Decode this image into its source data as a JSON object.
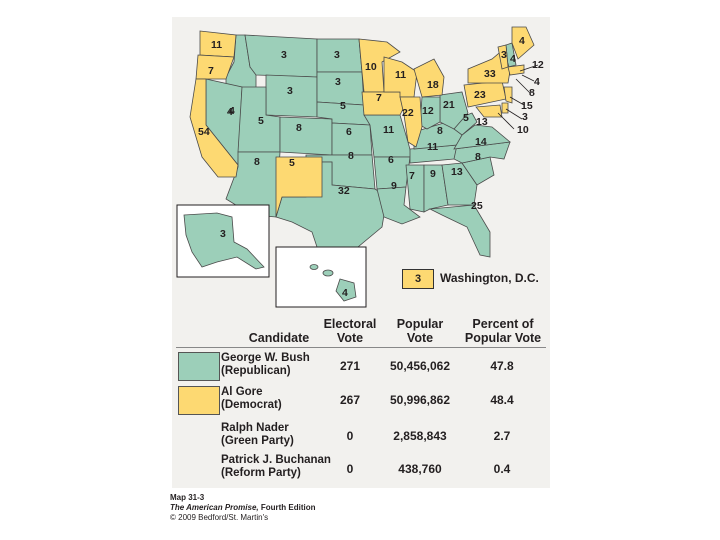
{
  "colors": {
    "republican": "#9ccfb9",
    "democrat": "#fdd972",
    "border": "#4a4a4a"
  },
  "map": {
    "state_votes": {
      "wa": "11",
      "or": "7",
      "ca": "54",
      "id": "4",
      "nv": "4",
      "mt": "3",
      "wy": "3",
      "ut": "5",
      "az": "8",
      "co": "8",
      "nm": "5",
      "nd": "3",
      "sd": "3",
      "ne": "5",
      "ks": "6",
      "ok": "8",
      "tx": "32",
      "mn": "10",
      "ia": "7",
      "mo": "11",
      "ar": "6",
      "la": "9",
      "wi": "11",
      "il": "22",
      "mi": "18",
      "in": "12",
      "oh": "21",
      "ky": "8",
      "tn": "11",
      "ms": "7",
      "al": "9",
      "ga": "13",
      "fl": "25",
      "sc": "8",
      "nc": "14",
      "va": "13",
      "wv": "5",
      "pa": "23",
      "ny": "33",
      "vt": "3",
      "nh": "4",
      "me": "4",
      "ma": "12",
      "ri": "4",
      "ct": "8",
      "nj": "15",
      "de": "3",
      "md": "10",
      "ak": "3",
      "hi": "4"
    },
    "dc": {
      "votes": "3",
      "label": "Washington, D.C."
    }
  },
  "table": {
    "headers": {
      "candidate": "Candidate",
      "electoral": [
        "Electoral",
        "Vote"
      ],
      "popular": [
        "Popular",
        "Vote"
      ],
      "percent": [
        "Percent of",
        "Popular Vote"
      ]
    },
    "rows": [
      {
        "name": "George W. Bush",
        "party": "(Republican)",
        "electoral": "271",
        "popular": "50,456,062",
        "percent": "47.8",
        "swatch": "republican"
      },
      {
        "name": "Al Gore",
        "party": "(Democrat)",
        "electoral": "267",
        "popular": "50,996,862",
        "percent": "48.4",
        "swatch": "democrat"
      },
      {
        "name": "Ralph Nader",
        "party": "(Green Party)",
        "electoral": "0",
        "popular": "2,858,843",
        "percent": "2.7",
        "swatch": ""
      },
      {
        "name": "Patrick J. Buchanan",
        "party": "(Reform Party)",
        "electoral": "0",
        "popular": "438,760",
        "percent": "0.4",
        "swatch": ""
      }
    ]
  },
  "caption": {
    "line1": "Map 31-3",
    "line2": "The American Promise,",
    "line2b": " Fourth Edition",
    "line3": "© 2009 Bedford/St. Martin's"
  }
}
